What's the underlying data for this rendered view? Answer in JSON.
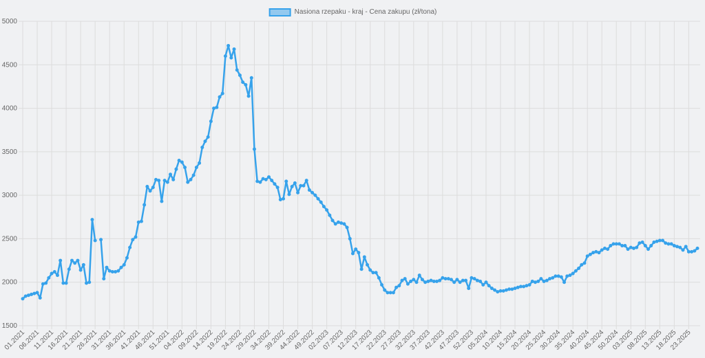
{
  "chart_data": {
    "type": "line",
    "categories": [
      "01.2021",
      null,
      null,
      null,
      null,
      "06.2021",
      null,
      null,
      null,
      null,
      "11.2021",
      null,
      null,
      null,
      null,
      "16.2021",
      null,
      null,
      null,
      null,
      "21.2021",
      null,
      null,
      null,
      null,
      "26.2021",
      null,
      null,
      null,
      null,
      "31.2021",
      null,
      null,
      null,
      null,
      "36.2021",
      null,
      null,
      null,
      null,
      "41.2021",
      null,
      null,
      null,
      null,
      "46.2021",
      null,
      null,
      null,
      null,
      "51.2021",
      null,
      null,
      null,
      null,
      "04.2022",
      null,
      null,
      null,
      null,
      "09.2022",
      null,
      null,
      null,
      null,
      "14.2022",
      null,
      null,
      null,
      null,
      "19.2022",
      null,
      null,
      null,
      null,
      "24.2022",
      null,
      null,
      null,
      null,
      "29.2022",
      null,
      null,
      null,
      null,
      "34.2022",
      null,
      null,
      null,
      null,
      "39.2022",
      null,
      null,
      null,
      null,
      "44.2022",
      null,
      null,
      null,
      null,
      "49.2022",
      null,
      null,
      null,
      null,
      "02.2023",
      null,
      null,
      null,
      null,
      "07.2023",
      null,
      null,
      null,
      null,
      "12.2023",
      null,
      null,
      null,
      null,
      "17.2023",
      null,
      null,
      null,
      null,
      "22.2023",
      null,
      null,
      null,
      null,
      "27.2023",
      null,
      null,
      null,
      null,
      "32.2023",
      null,
      null,
      null,
      null,
      "37.2023",
      null,
      null,
      null,
      null,
      "42.2023",
      null,
      null,
      null,
      null,
      "47.2023",
      null,
      null,
      null,
      null,
      "52.2023",
      null,
      null,
      null,
      null,
      "05.2024",
      null,
      null,
      null,
      null,
      "10.2024",
      null,
      null,
      null,
      null,
      "15.2024",
      null,
      null,
      null,
      null,
      "20.2024",
      null,
      null,
      null,
      null,
      "25.2024",
      null,
      null,
      null,
      null,
      "30.2024",
      null,
      null,
      null,
      null,
      "35.2024",
      null,
      null,
      null,
      null,
      "40.2024",
      null,
      null,
      null,
      null,
      "45.2024",
      null,
      null,
      null,
      null,
      "50.2024",
      null,
      null,
      null,
      null,
      "03.2025",
      null,
      null,
      null,
      null,
      "08.2025",
      null,
      null,
      null,
      null,
      "13.2025",
      null,
      null,
      null,
      null,
      "18.2025",
      null,
      null,
      null,
      null,
      "23.2025",
      null,
      null,
      null
    ],
    "series": [
      {
        "name": "Nasiona rzepaku - kraj - Cena zakupu (zł/tona)",
        "color": "#36a2eb",
        "values": [
          1810,
          1840,
          1850,
          1860,
          1870,
          1880,
          1820,
          1980,
          1990,
          2050,
          2100,
          2120,
          2080,
          2250,
          1990,
          1990,
          2150,
          2250,
          2220,
          2250,
          2140,
          2200,
          1990,
          2000,
          2720,
          2480,
          null,
          2490,
          2040,
          2170,
          2130,
          2120,
          2120,
          2130,
          2170,
          2200,
          2280,
          2400,
          2490,
          2520,
          2690,
          2700,
          2890,
          3100,
          3050,
          3090,
          3180,
          3170,
          2930,
          3170,
          3150,
          3240,
          3180,
          3300,
          3400,
          3380,
          3320,
          3150,
          3180,
          3230,
          3320,
          3370,
          3550,
          3620,
          3670,
          3850,
          4000,
          4010,
          4130,
          4170,
          4600,
          4720,
          4580,
          4680,
          4440,
          4380,
          4300,
          4270,
          4140,
          4350,
          3530,
          3160,
          3150,
          3190,
          3180,
          3210,
          3170,
          3130,
          3090,
          2950,
          2960,
          3160,
          3010,
          3100,
          3140,
          3030,
          3110,
          3110,
          3170,
          3060,
          3030,
          3000,
          2960,
          2920,
          2870,
          2830,
          2770,
          2710,
          2670,
          2690,
          2680,
          2670,
          2630,
          2500,
          2330,
          2380,
          2340,
          2150,
          2290,
          2200,
          2140,
          2110,
          2110,
          2050,
          1970,
          1910,
          1880,
          1880,
          1880,
          1940,
          1960,
          2020,
          2040,
          1980,
          2010,
          2030,
          2000,
          2080,
          2030,
          2000,
          2010,
          2020,
          2010,
          2010,
          2020,
          2050,
          2040,
          2040,
          2030,
          2000,
          2030,
          2000,
          2020,
          2020,
          1930,
          2050,
          2040,
          2020,
          2010,
          1970,
          2000,
          1960,
          1930,
          1910,
          1890,
          1900,
          1900,
          1910,
          1920,
          1920,
          1930,
          1940,
          1950,
          1950,
          1960,
          1970,
          2010,
          2000,
          2010,
          2040,
          2010,
          2020,
          2040,
          2050,
          2070,
          2070,
          2060,
          2000,
          2070,
          2080,
          2100,
          2130,
          2160,
          2200,
          2220,
          2300,
          2320,
          2340,
          2350,
          2340,
          2370,
          2390,
          2380,
          2420,
          2440,
          2440,
          2440,
          2420,
          2420,
          2380,
          2400,
          2390,
          2400,
          2450,
          2460,
          2420,
          2380,
          2420,
          2460,
          2470,
          2480,
          2480,
          2450,
          2440,
          2440,
          2420,
          2410,
          2400,
          2370,
          2410,
          2350,
          2350,
          2360,
          2390
        ]
      }
    ],
    "ylim": [
      1500,
      5000
    ],
    "yticks": [
      1500,
      2000,
      2500,
      3000,
      3500,
      4000,
      4500,
      5000
    ],
    "grid": true
  }
}
